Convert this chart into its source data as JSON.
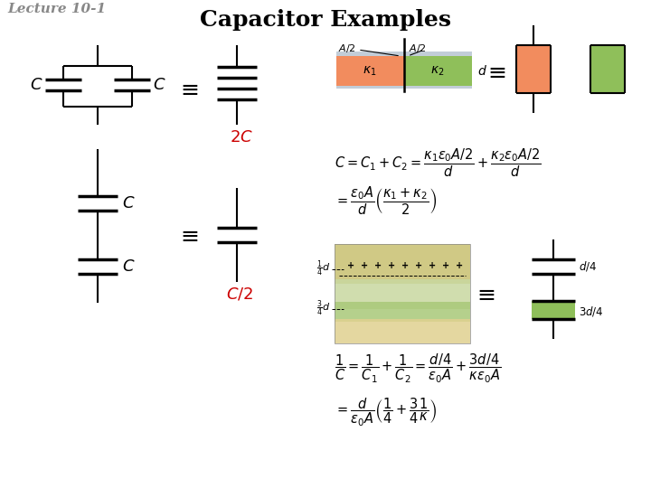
{
  "title": "Capacitor Examples",
  "lecture_label": "Lecture 10-1",
  "bg_color": "#ffffff",
  "title_fontsize": 18,
  "lecture_fontsize": 11,
  "orange_color": "#F28C5E",
  "green_color": "#8FBF5A",
  "blue_gray": "#A8B8C8",
  "red_color": "#CC0000",
  "black": "#000000",
  "gray": "#888888"
}
